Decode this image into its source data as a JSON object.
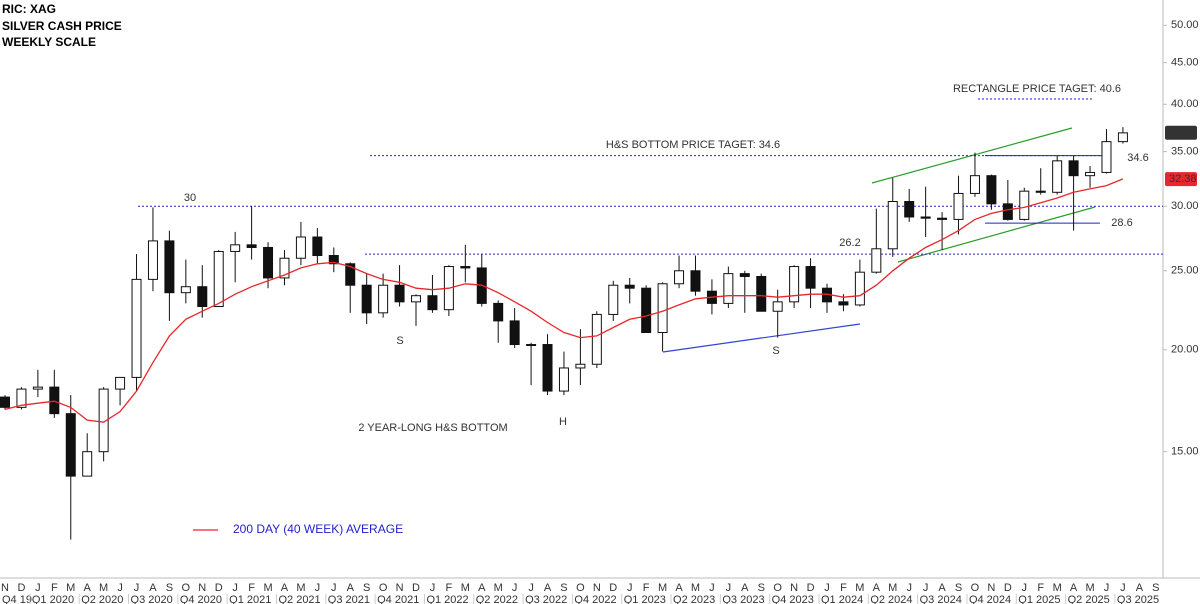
{
  "chart_data": {
    "type": "candlestick",
    "title_lines": [
      "RIC: XAG",
      "SILVER CASH PRICE",
      "WEEKLY SCALE"
    ],
    "categories": [
      "N",
      "D",
      "J",
      "F",
      "M",
      "A",
      "M",
      "J",
      "J",
      "A",
      "S",
      "O",
      "N",
      "D",
      "J",
      "F",
      "M",
      "A",
      "M",
      "J",
      "J",
      "A",
      "S",
      "O",
      "N",
      "D",
      "J",
      "F",
      "M",
      "A",
      "M",
      "J",
      "J",
      "A",
      "S",
      "O",
      "N",
      "D",
      "J",
      "F",
      "M",
      "A",
      "M",
      "J",
      "J",
      "A",
      "S",
      "O",
      "N",
      "D",
      "J",
      "F",
      "M",
      "A",
      "M",
      "J",
      "J",
      "A",
      "S",
      "O",
      "N",
      "D",
      "J",
      "F",
      "M",
      "A",
      "M",
      "J",
      "J",
      "A",
      "S"
    ],
    "quarters": [
      "Q4 19",
      "Q1 2020",
      "Q2 2020",
      "Q3 2020",
      "Q4 2020",
      "Q1 2021",
      "Q2 2021",
      "Q3 2021",
      "Q4 2021",
      "Q1 2022",
      "Q2 2022",
      "Q3 2022",
      "Q4 2022",
      "Q1 2023",
      "Q2 2023",
      "Q3 2023",
      "Q4 2023",
      "Q1 2024",
      "Q2 2024",
      "Q3 2024",
      "Q4 2024",
      "Q1 2025",
      "Q2 2025",
      "Q3 2025"
    ],
    "open": [
      17.5,
      17.0,
      17.9,
      18.0,
      16.7,
      14.0,
      15.0,
      17.9,
      18.5,
      24.4,
      27.2,
      23.5,
      23.9,
      22.6,
      26.4,
      26.9,
      26.7,
      24.5,
      25.9,
      27.5,
      26.1,
      25.5,
      24.0,
      22.2,
      24.0,
      22.9,
      23.3,
      22.4,
      25.3,
      25.2,
      22.8,
      21.7,
      20.3,
      20.3,
      17.8,
      19.0,
      19.2,
      22.1,
      24.0,
      23.8,
      21.0,
      24.1,
      25.0,
      23.6,
      22.8,
      24.8,
      24.6,
      22.3,
      22.9,
      25.3,
      23.8,
      22.9,
      22.7,
      24.9,
      26.6,
      30.4,
      29.1,
      29.0,
      28.9,
      31.1,
      32.7,
      30.2,
      28.9,
      31.3,
      31.2,
      34.1,
      32.7,
      33.0,
      36.0,
      null,
      null
    ],
    "high": [
      17.6,
      18.0,
      18.9,
      18.9,
      17.6,
      15.8,
      18.0,
      18.5,
      26.2,
      29.9,
      28.0,
      25.8,
      25.4,
      26.5,
      27.9,
      30.0,
      27.1,
      26.5,
      28.7,
      28.2,
      26.7,
      25.6,
      24.8,
      24.8,
      25.4,
      23.4,
      24.7,
      25.4,
      26.9,
      26.2,
      23.0,
      22.5,
      20.4,
      20.9,
      19.9,
      21.2,
      22.3,
      24.3,
      24.5,
      24.0,
      24.2,
      26.1,
      26.1,
      24.4,
      25.3,
      25.0,
      24.8,
      23.7,
      25.4,
      25.9,
      24.1,
      23.4,
      25.8,
      29.8,
      32.5,
      31.5,
      31.7,
      29.5,
      32.7,
      34.9,
      32.8,
      32.3,
      31.6,
      33.4,
      34.6,
      34.6,
      33.6,
      37.3,
      37.5,
      null,
      null
    ],
    "low": [
      16.9,
      16.9,
      17.5,
      16.5,
      11.7,
      14.0,
      14.6,
      17.1,
      17.8,
      23.6,
      21.7,
      22.8,
      21.9,
      22.6,
      24.2,
      25.8,
      23.8,
      24.0,
      25.4,
      25.5,
      24.9,
      22.2,
      21.5,
      21.9,
      22.6,
      21.4,
      22.2,
      22.0,
      24.2,
      22.6,
      20.4,
      20.1,
      18.1,
      17.6,
      17.6,
      18.1,
      19.0,
      21.7,
      22.8,
      21.0,
      19.9,
      23.8,
      23.3,
      22.1,
      22.5,
      22.2,
      22.3,
      20.7,
      22.5,
      22.5,
      22.2,
      22.3,
      22.6,
      24.8,
      26.0,
      28.7,
      27.5,
      26.5,
      27.7,
      30.8,
      29.7,
      28.8,
      28.8,
      31.0,
      31.0,
      28.0,
      31.6,
      32.9,
      35.8,
      null,
      null
    ],
    "close": [
      17.0,
      17.9,
      18.0,
      16.7,
      14.0,
      15.0,
      17.9,
      18.5,
      24.4,
      27.2,
      23.5,
      23.9,
      22.6,
      26.4,
      26.9,
      26.7,
      24.5,
      25.9,
      27.5,
      26.1,
      25.5,
      24.0,
      22.2,
      24.0,
      22.9,
      23.3,
      22.4,
      25.3,
      25.2,
      22.8,
      21.7,
      20.3,
      20.3,
      17.8,
      19.0,
      19.2,
      22.1,
      24.0,
      23.8,
      21.0,
      24.1,
      25.0,
      23.6,
      22.8,
      24.8,
      24.6,
      22.3,
      22.9,
      25.3,
      23.8,
      22.9,
      22.7,
      24.9,
      26.6,
      30.4,
      29.1,
      29.0,
      28.9,
      31.1,
      32.7,
      30.2,
      28.9,
      31.3,
      31.2,
      34.1,
      32.7,
      33.0,
      36.0,
      36.9,
      null,
      null
    ],
    "series": [
      {
        "name": "200 DAY (40 WEEK) AVERAGE",
        "color": "#e8262b",
        "values": [
          16.9,
          17.1,
          17.2,
          17.3,
          17.0,
          16.4,
          16.3,
          16.8,
          17.8,
          19.3,
          20.8,
          21.8,
          22.3,
          22.8,
          23.4,
          23.9,
          24.3,
          24.7,
          25.2,
          25.5,
          25.6,
          25.3,
          24.8,
          24.4,
          24.2,
          23.8,
          23.7,
          23.8,
          24.1,
          24.0,
          23.5,
          22.9,
          22.3,
          21.6,
          21.0,
          20.7,
          20.8,
          21.3,
          21.8,
          22.0,
          22.3,
          22.7,
          23.1,
          23.2,
          23.3,
          23.3,
          23.3,
          23.2,
          23.3,
          23.4,
          23.4,
          23.2,
          23.3,
          24.0,
          25.0,
          25.9,
          26.7,
          27.3,
          28.0,
          28.9,
          29.4,
          29.7,
          29.9,
          30.3,
          30.7,
          31.2,
          31.5,
          31.8,
          32.4,
          null,
          null
        ]
      }
    ],
    "last_price": 36.91,
    "average_last": 32.38,
    "ylim": [
      10.5,
      53.7
    ],
    "yticks": [
      {
        "value": 15,
        "label": "15.00"
      },
      {
        "value": 20,
        "label": "20.00"
      },
      {
        "value": 25,
        "label": "25.00"
      },
      {
        "value": 30,
        "label": "30.00"
      },
      {
        "value": 35,
        "label": "35.00"
      },
      {
        "value": 40,
        "label": "40.00"
      },
      {
        "value": 45,
        "label": "45.00"
      },
      {
        "value": 50,
        "label": "50.00"
      }
    ],
    "log_scale": true,
    "levels": [
      30,
      26.2,
      34.6,
      28.6
    ],
    "targets": [
      {
        "text": "H&S BOTTOM PRICE TAGET: 34.6",
        "value": 34.6
      },
      {
        "text": "RECTANGLE PRICE TAGET: 40.6",
        "value": 40.6
      }
    ],
    "annotations": [
      "S",
      "H",
      "S",
      "2 YEAR-LONG H&S BOTTOM"
    ],
    "annotation_color": "#2222cc"
  }
}
